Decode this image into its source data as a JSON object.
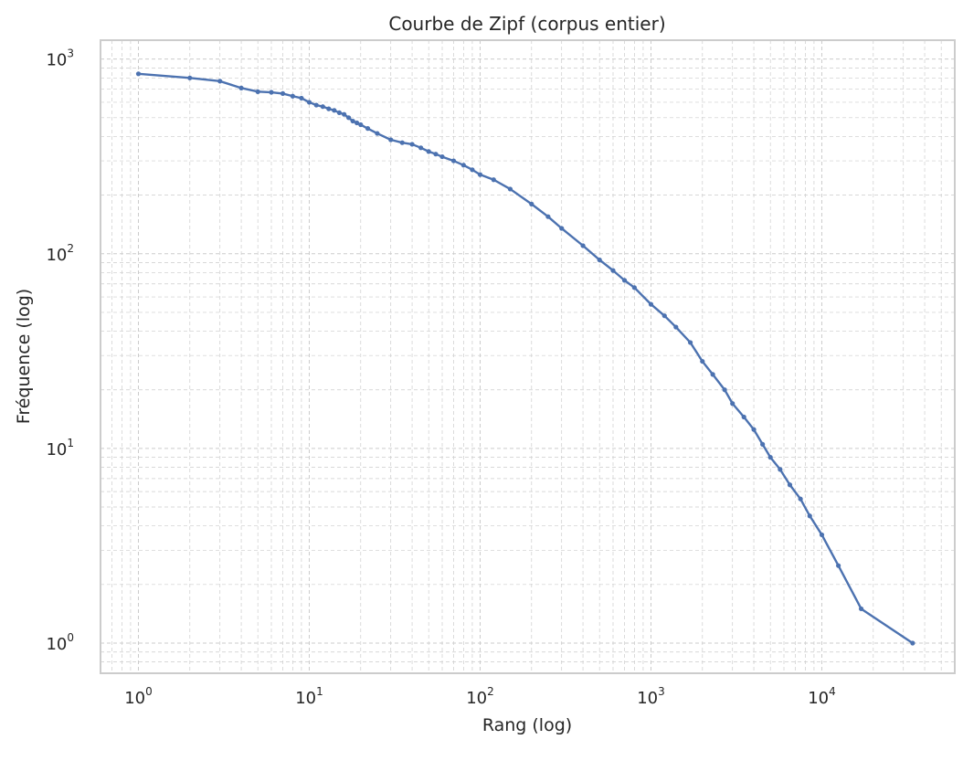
{
  "chart_data": {
    "type": "line",
    "title": "Courbe de Zipf (corpus entier)",
    "xlabel": "Rang (log)",
    "ylabel": "Fréquence (log)",
    "xscale": "log",
    "yscale": "log",
    "xlim": [
      0.6,
      60000
    ],
    "ylim": [
      0.7,
      1250
    ],
    "grid": "major and minor, dashed",
    "legend": "none",
    "colors": {
      "series": "#4c72b0",
      "grid": "#cccccc",
      "frame": "#cccccc"
    },
    "x_ticks": [
      {
        "base": "10",
        "exp": "0",
        "value": 1
      },
      {
        "base": "10",
        "exp": "1",
        "value": 10
      },
      {
        "base": "10",
        "exp": "2",
        "value": 100
      },
      {
        "base": "10",
        "exp": "3",
        "value": 1000
      },
      {
        "base": "10",
        "exp": "4",
        "value": 10000
      }
    ],
    "y_ticks": [
      {
        "base": "10",
        "exp": "0",
        "value": 1
      },
      {
        "base": "10",
        "exp": "1",
        "value": 10
      },
      {
        "base": "10",
        "exp": "2",
        "value": 100
      },
      {
        "base": "10",
        "exp": "3",
        "value": 1000
      }
    ],
    "series": [
      {
        "x": [
          1,
          2,
          3,
          4,
          5,
          6,
          7,
          8,
          9,
          10,
          11,
          12,
          13,
          14,
          15,
          16,
          17,
          18,
          19,
          20,
          22,
          25,
          30,
          35,
          40,
          45,
          50,
          55,
          60,
          70,
          80,
          90,
          100,
          120,
          150,
          200,
          250,
          300,
          400,
          500,
          600,
          700,
          800,
          1000,
          1200,
          1400,
          1700,
          2000,
          2300,
          2700,
          3000,
          3500,
          4000,
          4500,
          5000,
          5700,
          6500,
          7500,
          8500,
          10000,
          12500,
          17000,
          34000
        ],
        "y": [
          840,
          800,
          770,
          710,
          680,
          675,
          665,
          645,
          630,
          600,
          580,
          570,
          555,
          545,
          530,
          520,
          500,
          480,
          470,
          460,
          440,
          415,
          385,
          372,
          365,
          350,
          335,
          325,
          315,
          300,
          285,
          270,
          255,
          240,
          215,
          180,
          155,
          135,
          110,
          93,
          82,
          73,
          67,
          55,
          48,
          42,
          35,
          28,
          24,
          20,
          17,
          14.5,
          12.5,
          10.5,
          9,
          7.8,
          6.5,
          5.5,
          4.5,
          3.6,
          2.5,
          1.5,
          1
        ]
      }
    ]
  }
}
